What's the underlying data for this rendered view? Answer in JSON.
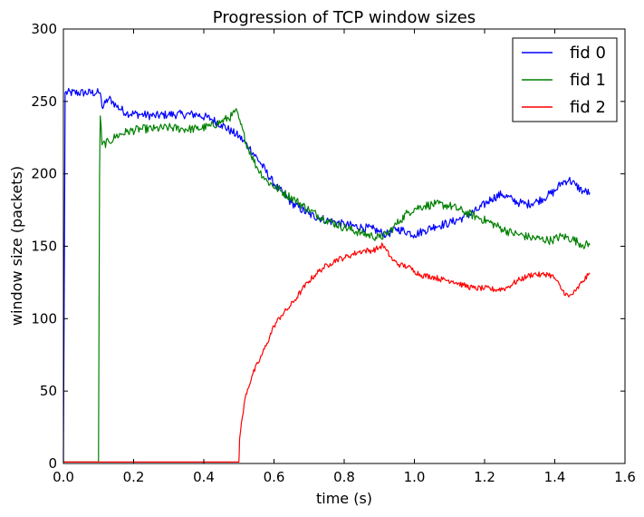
{
  "chart_data": {
    "type": "line",
    "title": "Progression of TCP window sizes",
    "xlabel": "time (s)",
    "ylabel": "window size (packets)",
    "xlim": [
      0.0,
      1.6
    ],
    "ylim": [
      0,
      300
    ],
    "xticks": [
      0.0,
      0.2,
      0.4,
      0.6,
      0.8,
      1.0,
      1.2,
      1.4,
      1.6
    ],
    "xtick_labels": [
      "0.0",
      "0.2",
      "0.4",
      "0.6",
      "0.8",
      "1.0",
      "1.2",
      "1.4",
      "1.6"
    ],
    "yticks": [
      0,
      50,
      100,
      150,
      200,
      250,
      300
    ],
    "ytick_labels": [
      "0",
      "50",
      "100",
      "150",
      "200",
      "250",
      "300"
    ],
    "grid": false,
    "legend_position": "top-right",
    "series": [
      {
        "name": "fid 0",
        "color": "#0000ff",
        "noise": 3,
        "x": [
          0.0,
          0.005,
          0.1,
          0.105,
          0.11,
          0.12,
          0.13,
          0.14,
          0.15,
          0.18,
          0.22,
          0.26,
          0.3,
          0.34,
          0.38,
          0.42,
          0.45,
          0.48,
          0.5,
          0.53,
          0.56,
          0.6,
          0.65,
          0.7,
          0.75,
          0.8,
          0.85,
          0.88,
          0.9,
          0.92,
          0.95,
          0.98,
          1.0,
          1.03,
          1.06,
          1.1,
          1.14,
          1.18,
          1.22,
          1.25,
          1.28,
          1.3,
          1.32,
          1.35,
          1.38,
          1.4,
          1.42,
          1.44,
          1.46,
          1.48,
          1.5
        ],
        "y": [
          1,
          256,
          256,
          256,
          246,
          249,
          252,
          250,
          247,
          242,
          241,
          240,
          241,
          241,
          241,
          238,
          234,
          229,
          226,
          218,
          208,
          193,
          180,
          172,
          168,
          165,
          163,
          162,
          160,
          158,
          162,
          160,
          158,
          161,
          164,
          166,
          170,
          175,
          183,
          186,
          182,
          180,
          179,
          181,
          185,
          188,
          194,
          196,
          192,
          188,
          187
        ]
      },
      {
        "name": "fid 1",
        "color": "#008000",
        "noise": 3,
        "x": [
          0.0,
          0.1,
          0.103,
          0.105,
          0.11,
          0.13,
          0.15,
          0.18,
          0.22,
          0.26,
          0.3,
          0.34,
          0.38,
          0.42,
          0.45,
          0.48,
          0.49,
          0.5,
          0.52,
          0.55,
          0.58,
          0.62,
          0.66,
          0.7,
          0.75,
          0.8,
          0.85,
          0.88,
          0.9,
          0.92,
          0.94,
          0.96,
          0.98,
          1.0,
          1.03,
          1.06,
          1.1,
          1.14,
          1.18,
          1.22,
          1.25,
          1.28,
          1.3,
          1.33,
          1.36,
          1.39,
          1.42,
          1.45,
          1.48,
          1.5
        ],
        "y": [
          1,
          1,
          200,
          240,
          220,
          222,
          226,
          229,
          231,
          231,
          232,
          231,
          231,
          233,
          236,
          240,
          244,
          238,
          222,
          205,
          195,
          188,
          182,
          175,
          168,
          163,
          159,
          157,
          156,
          158,
          163,
          168,
          173,
          176,
          178,
          179,
          178,
          174,
          170,
          166,
          162,
          159,
          158,
          156,
          155,
          154,
          157,
          155,
          151,
          151
        ]
      },
      {
        "name": "fid 2",
        "color": "#ff0000",
        "noise": 2,
        "x": [
          0.0,
          0.5,
          0.502,
          0.51,
          0.52,
          0.54,
          0.56,
          0.58,
          0.6,
          0.62,
          0.64,
          0.66,
          0.68,
          0.7,
          0.72,
          0.74,
          0.76,
          0.78,
          0.8,
          0.82,
          0.84,
          0.86,
          0.88,
          0.9,
          0.91,
          0.92,
          0.94,
          0.96,
          0.98,
          1.0,
          1.02,
          1.05,
          1.08,
          1.11,
          1.14,
          1.17,
          1.2,
          1.23,
          1.26,
          1.28,
          1.3,
          1.32,
          1.34,
          1.36,
          1.38,
          1.4,
          1.42,
          1.44,
          1.46,
          1.48,
          1.5
        ],
        "y": [
          1,
          1,
          17,
          32,
          48,
          62,
          72,
          83,
          95,
          102,
          107,
          113,
          120,
          126,
          131,
          135,
          138,
          141,
          142,
          144,
          146,
          147,
          147,
          149,
          151,
          147,
          140,
          137,
          136,
          133,
          130,
          129,
          127,
          126,
          123,
          121,
          121,
          120,
          121,
          124,
          127,
          129,
          131,
          130,
          131,
          128,
          120,
          115,
          119,
          126,
          131
        ]
      }
    ]
  }
}
